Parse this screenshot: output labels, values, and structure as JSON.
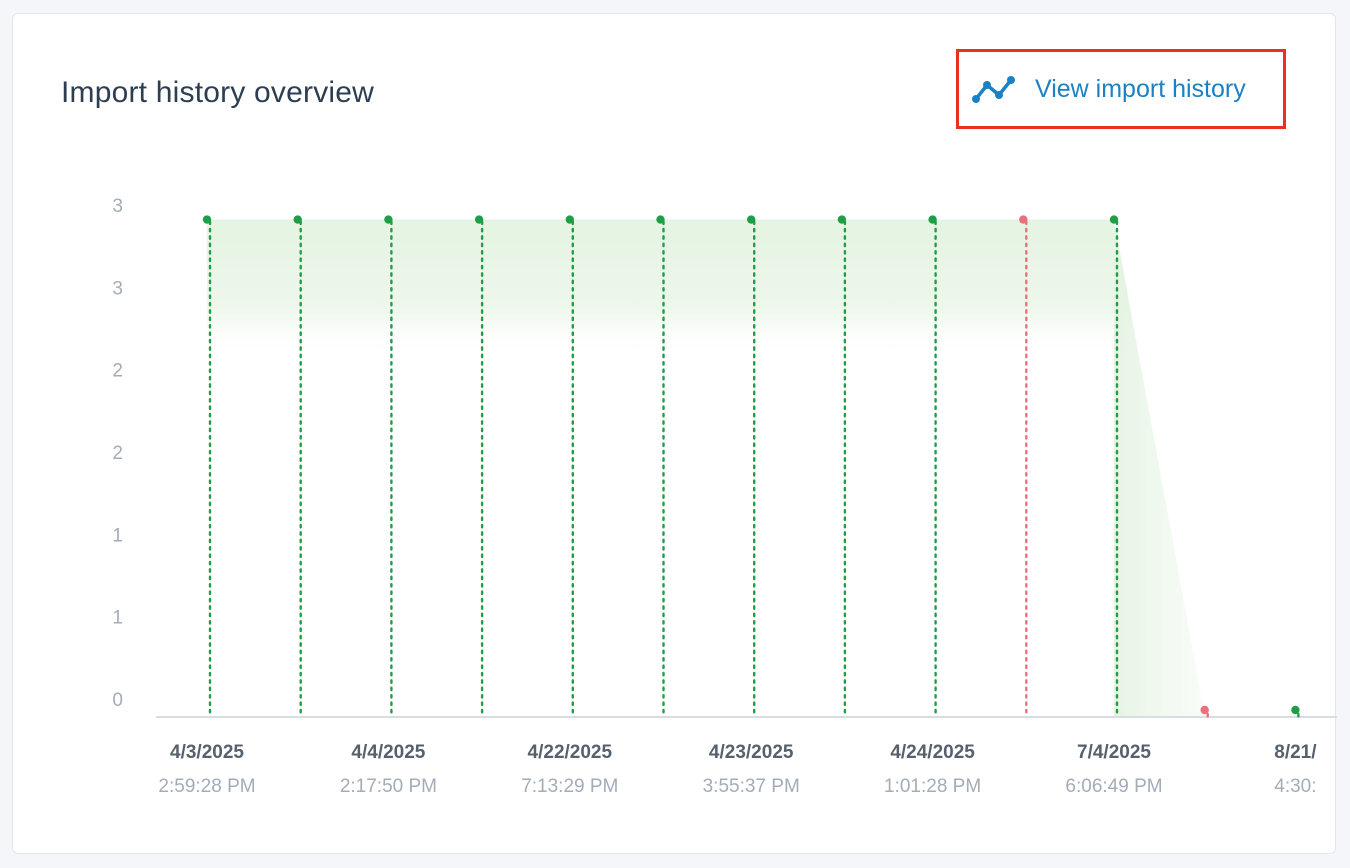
{
  "card": {
    "title": "Import history overview",
    "link_label": "View import history",
    "link_icon": "line-chart-icon",
    "link_color": "#1a82c4",
    "highlight_color": "#e8321e"
  },
  "chart_data": {
    "type": "line",
    "title": "",
    "xlabel": "",
    "ylabel": "",
    "y_tick_labels": [
      "0",
      "1",
      "1",
      "2",
      "2",
      "3",
      "3"
    ],
    "ylim": [
      0,
      3.1
    ],
    "grid": false,
    "legend": "none",
    "colors": {
      "success": "#1f9e48",
      "failure": "#e9707c",
      "fill": "#e6f4e5",
      "axis": "#d8dde3"
    },
    "x_tick_labels": [
      {
        "date": "4/3/2025",
        "time": "2:59:28 PM"
      },
      {
        "date": "4/4/2025",
        "time": "2:17:50 PM"
      },
      {
        "date": "4/22/2025",
        "time": "7:13:29 PM"
      },
      {
        "date": "4/23/2025",
        "time": "3:55:37 PM"
      },
      {
        "date": "4/24/2025",
        "time": "1:01:28 PM"
      },
      {
        "date": "7/4/2025",
        "time": "6:06:49 PM"
      },
      {
        "date": "8/21/",
        "time": "4:30:"
      }
    ],
    "series": [
      {
        "values": [
          3,
          3,
          3,
          3,
          3,
          3,
          3,
          3,
          3,
          3,
          3,
          0,
          0
        ],
        "status": [
          "success",
          "success",
          "success",
          "success",
          "success",
          "success",
          "success",
          "success",
          "success",
          "failure",
          "success",
          "failure",
          "success"
        ]
      }
    ]
  }
}
